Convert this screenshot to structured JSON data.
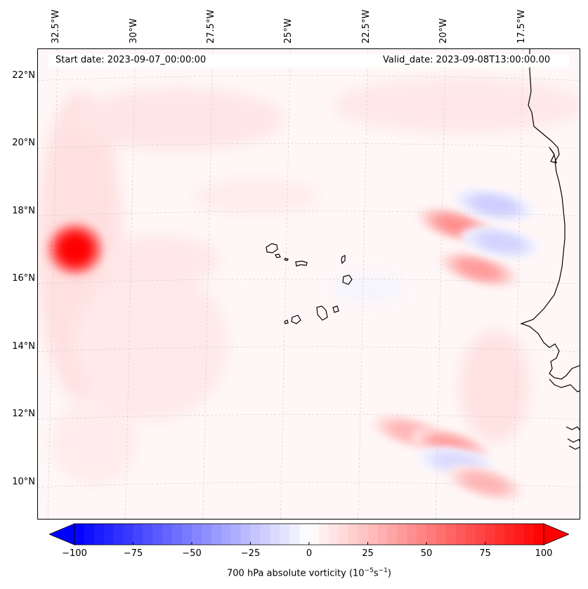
{
  "chart_data": {
    "type": "heatmap",
    "title": "",
    "start_date_label": "Start date: 2023-09-07_00:00:00",
    "valid_date_label": "Valid_date: 2023-09-08T13:00:00.00",
    "lon_ticks": [
      "32.5°W",
      "30°W",
      "27.5°W",
      "25°W",
      "22.5°W",
      "20°W",
      "17.5°W"
    ],
    "lat_ticks": [
      "22°N",
      "20°N",
      "18°N",
      "16°N",
      "14°N",
      "12°N",
      "10°N"
    ],
    "lon_range": [
      -33.0,
      -15.5
    ],
    "lat_range": [
      8.9,
      22.8
    ],
    "colorbar": {
      "label_main": "700 hPa absolute vorticity (10",
      "label_exp1": "−5",
      "label_mid": "s",
      "label_exp2": "−1",
      "label_end": ")",
      "min": -100,
      "max": 100,
      "ticks": [
        "−100",
        "−75",
        "−50",
        "−25",
        "0",
        "25",
        "50",
        "75",
        "100"
      ],
      "tick_values": [
        -100,
        -75,
        -50,
        -25,
        0,
        25,
        50,
        75,
        100
      ],
      "cmap": "bwr",
      "low_color": "#0000ff",
      "mid_color": "#ffffff",
      "high_color": "#ff0000"
    },
    "features": [
      {
        "name": "vortex-maximum-west",
        "lon": -31.8,
        "lat": 16.9,
        "value": 100
      },
      {
        "name": "positive-band-east-north",
        "lon": -19.5,
        "lat": 17.6,
        "value": 45
      },
      {
        "name": "positive-band-east-mid",
        "lon": -18.8,
        "lat": 16.3,
        "value": 40
      },
      {
        "name": "negative-pocket-north",
        "lon": -18.3,
        "lat": 18.2,
        "value": -20
      },
      {
        "name": "negative-pocket-coast",
        "lon": -18.1,
        "lat": 17.1,
        "value": -18
      },
      {
        "name": "positive-band-south",
        "lon": -21.0,
        "lat": 11.5,
        "value": 30
      },
      {
        "name": "positive-maximum-south",
        "lon": -19.7,
        "lat": 11.1,
        "value": 40
      },
      {
        "name": "negative-pocket-south",
        "lon": -19.5,
        "lat": 10.6,
        "value": -15
      },
      {
        "name": "positive-band-southeast",
        "lon": -18.6,
        "lat": 10.0,
        "value": 30
      }
    ]
  }
}
